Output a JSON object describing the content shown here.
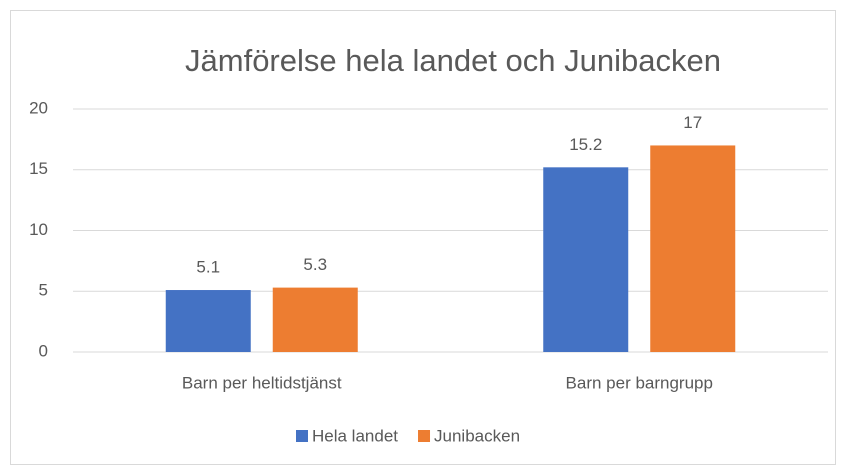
{
  "chart_data": {
    "type": "bar",
    "title": "Jämförelse hela landet och Junibacken",
    "categories": [
      "Barn per heltidstjänst",
      "Barn per barngrupp"
    ],
    "series": [
      {
        "name": "Hela landet",
        "color": "#4472c4",
        "values": [
          5.1,
          15.2
        ]
      },
      {
        "name": "Junibacken",
        "color": "#ed7d31",
        "values": [
          5.3,
          17
        ]
      }
    ],
    "ylim": [
      0,
      20
    ],
    "yticks": [
      0,
      5,
      10,
      15,
      20
    ],
    "grid": true,
    "legend": "bottom"
  }
}
